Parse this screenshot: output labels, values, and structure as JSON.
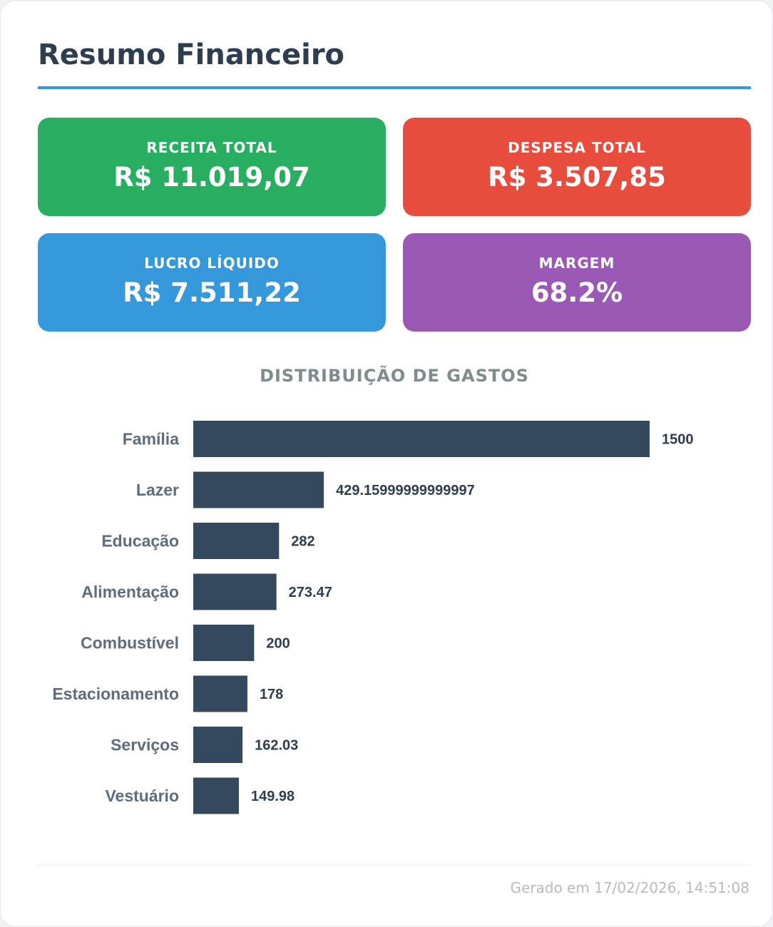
{
  "header": {
    "title": "Resumo Financeiro"
  },
  "kpis": [
    {
      "label": "RECEITA TOTAL",
      "value": "R$ 11.019,07",
      "color": "#27ae60"
    },
    {
      "label": "DESPESA TOTAL",
      "value": "R$ 3.507,85",
      "color": "#e74c3c"
    },
    {
      "label": "LUCRO LÍQUIDO",
      "value": "R$ 7.511,22",
      "color": "#3498db"
    },
    {
      "label": "MARGEM",
      "value": "68.2%",
      "color": "#9b59b6"
    }
  ],
  "chart_data": {
    "type": "bar",
    "orientation": "horizontal",
    "title": "DISTRIBUIÇÃO DE GASTOS",
    "categories": [
      "Família",
      "Lazer",
      "Educação",
      "Alimentação",
      "Combustível",
      "Estacionamento",
      "Serviços",
      "Vestuário"
    ],
    "values": [
      1500,
      429.15999999999997,
      282,
      273.47,
      200,
      178,
      162.03,
      149.98
    ],
    "value_labels": [
      "1500",
      "429.15999999999997",
      "282",
      "273.47",
      "200",
      "178",
      "162.03",
      "149.98"
    ],
    "xlim": [
      0,
      1500
    ],
    "bar_color": "#34495e",
    "xlabel": "",
    "ylabel": "",
    "grid": false,
    "legend": false
  },
  "footer": {
    "generated": "Gerado em 17/02/2026, 14:51:08"
  }
}
